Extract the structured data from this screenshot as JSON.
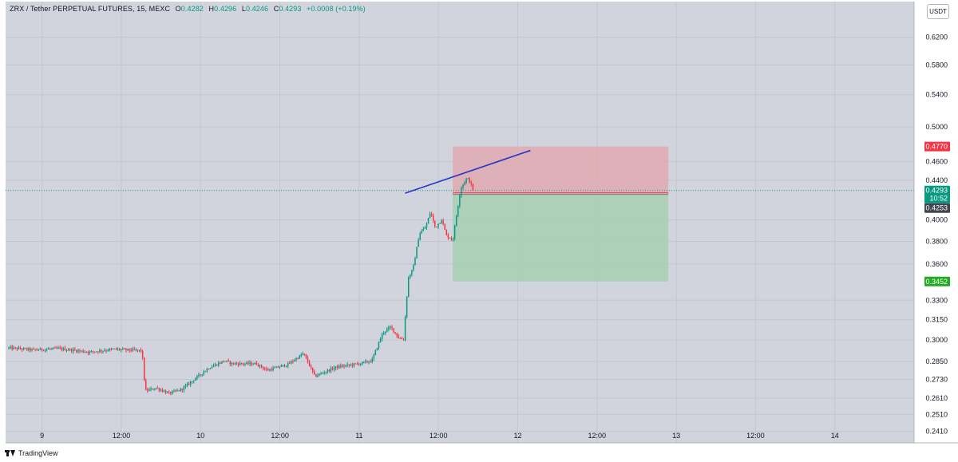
{
  "header": {
    "symbol": "ZRX / Tether PERPETUAL FUTURES, 15, MEXC",
    "ohlc": [
      {
        "k": "O",
        "v": "0.4282"
      },
      {
        "k": "H",
        "v": "0.4296"
      },
      {
        "k": "L",
        "v": "0.4246"
      },
      {
        "k": "C",
        "v": "0.4293"
      }
    ],
    "change": "+0.0008 (+0.19%)"
  },
  "currency_button": "USDT",
  "footer": {
    "brand": "TradingView",
    "logo_icon": "tradingview-logo-icon"
  },
  "colors": {
    "background": "#d1d4dc",
    "up": "#089981",
    "down": "#f23645",
    "trendline": "#2135c9",
    "stop_zone": "#e0a9b0",
    "target_zone": "#a7cfb2",
    "stop_label": "#f23645",
    "target_label": "#22ab22"
  },
  "chart_data": {
    "type": "candlestick",
    "title": "ZRX / Tether PERPETUAL FUTURES, 15, MEXC",
    "interval": "15",
    "x_axis": {
      "ticks": [
        "9",
        "12:00",
        "10",
        "12:00",
        "11",
        "12:00",
        "12",
        "12:00",
        "13",
        "12:00",
        "14"
      ],
      "tick_days": [
        9.0,
        9.5,
        10.0,
        10.5,
        11.0,
        11.5,
        12.0,
        12.5,
        13.0,
        13.5,
        14.0
      ],
      "range": [
        8.77,
        14.5
      ]
    },
    "y_axis": {
      "ticks": [
        "0.6200",
        "0.5800",
        "0.5400",
        "0.5000",
        "0.4600",
        "0.4400",
        "0.4000",
        "0.3800",
        "0.3600",
        "0.3300",
        "0.3150",
        "0.3000",
        "0.2850",
        "0.2730",
        "0.2610",
        "0.2510",
        "0.2410"
      ],
      "scale": "log",
      "range": [
        0.2345,
        0.675
      ]
    },
    "grid": true,
    "price_labels": {
      "stop": "0.4770",
      "last": "0.4293",
      "countdown": "10:52",
      "entry": "0.4253",
      "target": "0.3452"
    },
    "position": {
      "type": "short",
      "entry": 0.4253,
      "stop": 0.477,
      "target": 0.3452,
      "start_day": 11.59,
      "end_day": 12.95
    },
    "trendline": {
      "start": {
        "day": 11.29,
        "price": 0.4265
      },
      "end": {
        "day": 12.08,
        "price": 0.4725
      }
    },
    "last_price": 0.4293,
    "start_day": 8.78,
    "bars_per_day": 96,
    "close_anchors": [
      {
        "day": 8.78,
        "price": 0.2945
      },
      {
        "day": 8.95,
        "price": 0.293
      },
      {
        "day": 9.1,
        "price": 0.294
      },
      {
        "day": 9.3,
        "price": 0.2915
      },
      {
        "day": 9.45,
        "price": 0.2935
      },
      {
        "day": 9.63,
        "price": 0.2925
      },
      {
        "day": 9.65,
        "price": 0.2655
      },
      {
        "day": 9.72,
        "price": 0.2675
      },
      {
        "day": 9.8,
        "price": 0.264
      },
      {
        "day": 9.88,
        "price": 0.2665
      },
      {
        "day": 10.05,
        "price": 0.2805
      },
      {
        "day": 10.15,
        "price": 0.2855
      },
      {
        "day": 10.2,
        "price": 0.2835
      },
      {
        "day": 10.35,
        "price": 0.2835
      },
      {
        "day": 10.42,
        "price": 0.279
      },
      {
        "day": 10.55,
        "price": 0.283
      },
      {
        "day": 10.65,
        "price": 0.2905
      },
      {
        "day": 10.72,
        "price": 0.275
      },
      {
        "day": 10.85,
        "price": 0.281
      },
      {
        "day": 11.0,
        "price": 0.2835
      },
      {
        "day": 11.08,
        "price": 0.2855
      },
      {
        "day": 11.15,
        "price": 0.3055
      },
      {
        "day": 11.2,
        "price": 0.3095
      },
      {
        "day": 11.25,
        "price": 0.3015
      },
      {
        "day": 11.28,
        "price": 0.3005
      },
      {
        "day": 11.31,
        "price": 0.348
      },
      {
        "day": 11.34,
        "price": 0.356
      },
      {
        "day": 11.38,
        "price": 0.387
      },
      {
        "day": 11.42,
        "price": 0.3935
      },
      {
        "day": 11.45,
        "price": 0.408
      },
      {
        "day": 11.48,
        "price": 0.3925
      },
      {
        "day": 11.52,
        "price": 0.4005
      },
      {
        "day": 11.55,
        "price": 0.3855
      },
      {
        "day": 11.59,
        "price": 0.381
      },
      {
        "day": 11.62,
        "price": 0.4105
      },
      {
        "day": 11.64,
        "price": 0.4315
      },
      {
        "day": 11.68,
        "price": 0.4425
      },
      {
        "day": 11.7,
        "price": 0.438
      },
      {
        "day": 11.72,
        "price": 0.4293
      }
    ]
  }
}
